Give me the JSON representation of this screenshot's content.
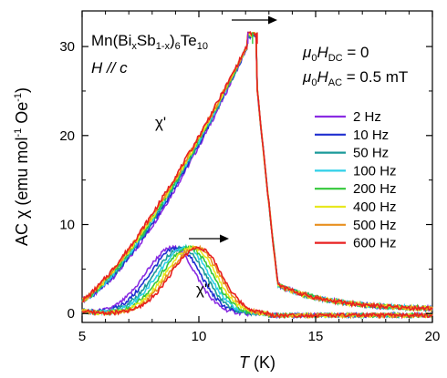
{
  "chart_data": {
    "type": "line",
    "title": "",
    "xlabel_italic": "T",
    "xlabel_unit": " (K)",
    "ylabel_main": "AC χ (emu mol",
    "ylabel_exp1": "-1",
    "ylabel_mid": " Oe",
    "ylabel_exp2": "-1",
    "ylabel_end": ")",
    "xlim": [
      5,
      20
    ],
    "ylim": [
      -1,
      34
    ],
    "xticks": [
      5,
      10,
      15,
      20
    ],
    "yticks": [
      0,
      10,
      20,
      30
    ],
    "grid": false,
    "legend_position": "right",
    "annotations": {
      "formula_a": "Mn(Bi",
      "formula_x": "x",
      "formula_b": "Sb",
      "formula_sub": "1-x",
      "formula_c": ")",
      "formula_sub6": "6",
      "formula_d": "Te",
      "formula_sub10": "10",
      "field_dir": "H // c",
      "hdc_mu": "μ",
      "hdc_sub0": "0",
      "hdc_H": "H",
      "hdc_subDC": "DC",
      "hdc_val": " = 0",
      "hac_mu": "μ",
      "hac_sub0": "0",
      "hac_H": "H",
      "hac_subAC": "AC",
      "hac_val": " = 0.5 mT",
      "chi_real": "χ'",
      "chi_imag": "χ''"
    },
    "series": [
      {
        "name": "2 Hz",
        "color": "#8a2be2",
        "real_offset": -0.7,
        "imag_peak_x": 8.9
      },
      {
        "name": "10 Hz",
        "color": "#1f2fd0",
        "real_offset": -0.4,
        "imag_peak_x": 9.1
      },
      {
        "name": "50 Hz",
        "color": "#1a9a9a",
        "real_offset": -0.2,
        "imag_peak_x": 9.3
      },
      {
        "name": "100 Hz",
        "color": "#2fd0e8",
        "real_offset": 0.0,
        "imag_peak_x": 9.45
      },
      {
        "name": "200 Hz",
        "color": "#33c83a",
        "real_offset": 0.15,
        "imag_peak_x": 9.6
      },
      {
        "name": "400 Hz",
        "color": "#e8e820",
        "real_offset": 0.3,
        "imag_peak_x": 9.75
      },
      {
        "name": "500 Hz",
        "color": "#e89020",
        "real_offset": 0.45,
        "imag_peak_x": 9.9
      },
      {
        "name": "600 Hz",
        "color": "#e82020",
        "real_offset": 0.6,
        "imag_peak_x": 10.0
      }
    ]
  }
}
